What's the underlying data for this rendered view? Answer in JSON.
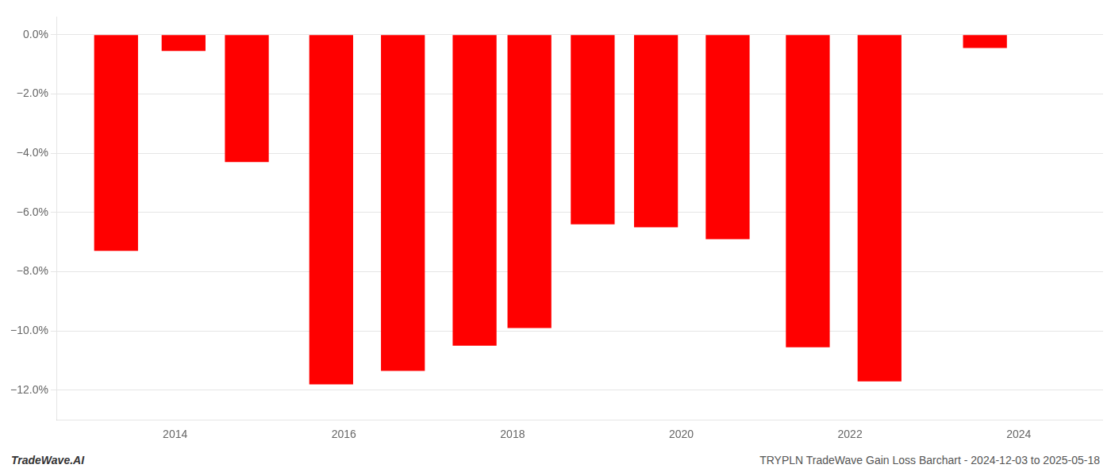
{
  "chart_data": {
    "type": "bar",
    "x": [
      2013.3,
      2014.1,
      2014.85,
      2015.85,
      2016.7,
      2017.55,
      2018.2,
      2018.95,
      2019.7,
      2020.55,
      2021.5,
      2022.35,
      2023.6
    ],
    "values": [
      -7.3,
      -0.55,
      -4.3,
      -11.8,
      -11.35,
      -10.5,
      -9.9,
      -6.4,
      -6.5,
      -6.9,
      -10.55,
      -11.7,
      -0.45
    ],
    "color": "#ff0000",
    "xlim": [
      2012.6,
      2025.0
    ],
    "ylim": [
      -13.0,
      0.6
    ],
    "xticks": [
      2014,
      2016,
      2018,
      2020,
      2022,
      2024
    ],
    "yticks": [
      {
        "value": 0.0,
        "label": "0.0%"
      },
      {
        "value": -2.0,
        "label": "−2.0%"
      },
      {
        "value": -4.0,
        "label": "−4.0%"
      },
      {
        "value": -6.0,
        "label": "−6.0%"
      },
      {
        "value": -8.0,
        "label": "−8.0%"
      },
      {
        "value": -10.0,
        "label": "−10.0%"
      },
      {
        "value": -12.0,
        "label": "−12.0%"
      }
    ],
    "grid": "y",
    "annotations": [
      "TradeWave.AI",
      "TRYPLN TradeWave Gain Loss Barchart - 2024-12-03 to 2025-05-18"
    ]
  }
}
